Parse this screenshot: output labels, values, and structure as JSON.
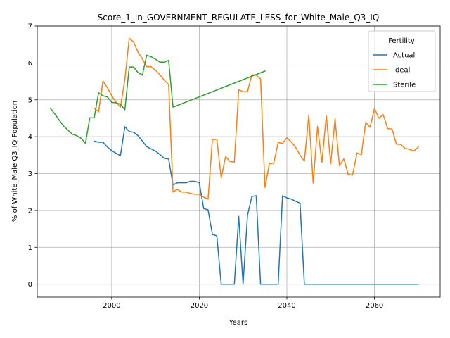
{
  "chart_data": {
    "type": "line",
    "title": "Score_1_in_GOVERNMENT_REGULATE_LESS_for_White_Male_Q3_IQ",
    "xlabel": "Years",
    "ylabel": "% of White_Male Q3_IQ Population",
    "xlim": [
      1983,
      2075
    ],
    "ylim": [
      -0.35,
      7
    ],
    "xticks": [
      "2000",
      "2020",
      "2040",
      "2060"
    ],
    "yticks": [
      "0",
      "1",
      "2",
      "3",
      "4",
      "5",
      "6",
      "7"
    ],
    "grid": true,
    "legend": {
      "title": "Fertility",
      "placement": "top-right"
    },
    "series": [
      {
        "name": "Actual",
        "color": "#1f77b4",
        "x": [
          1996,
          1997,
          1998,
          1999,
          2000,
          2001,
          2002,
          2003,
          2004,
          2005,
          2006,
          2007,
          2008,
          2009,
          2010,
          2011,
          2012,
          2013,
          2014,
          2015,
          2016,
          2017,
          2018,
          2019,
          2020,
          2021,
          2022,
          2023,
          2024,
          2025,
          2026,
          2027,
          2028,
          2029,
          2030,
          2031,
          2032,
          2033,
          2034,
          2035,
          2036,
          2037,
          2038,
          2039,
          2040,
          2041,
          2042,
          2043,
          2044,
          2045,
          2050,
          2055,
          2060,
          2065,
          2070
        ],
        "values": [
          3.88,
          3.85,
          3.85,
          3.72,
          3.62,
          3.55,
          3.49,
          4.27,
          4.14,
          4.12,
          4.03,
          3.88,
          3.73,
          3.67,
          3.61,
          3.52,
          3.41,
          3.4,
          2.69,
          2.75,
          2.75,
          2.75,
          2.79,
          2.79,
          2.75,
          2.05,
          2.02,
          1.35,
          1.31,
          0.0,
          0.0,
          0.0,
          0.0,
          1.84,
          0.0,
          1.87,
          2.38,
          2.4,
          0.0,
          0.0,
          0.0,
          0.0,
          0.0,
          2.4,
          2.34,
          2.31,
          2.25,
          2.2,
          0.0,
          0.0,
          0.0,
          0.0,
          0.0,
          0.0,
          0.0
        ]
      },
      {
        "name": "Ideal",
        "color": "#ff7f0e",
        "x": [
          1996,
          1997,
          1998,
          1999,
          2000,
          2001,
          2002,
          2003,
          2004,
          2005,
          2006,
          2007,
          2008,
          2009,
          2010,
          2011,
          2012,
          2013,
          2014,
          2015,
          2016,
          2017,
          2018,
          2019,
          2020,
          2021,
          2022,
          2023,
          2024,
          2025,
          2026,
          2027,
          2028,
          2029,
          2030,
          2031,
          2032,
          2033,
          2034,
          2035,
          2036,
          2037,
          2038,
          2039,
          2040,
          2041,
          2042,
          2043,
          2044,
          2045,
          2046,
          2047,
          2048,
          2049,
          2050,
          2051,
          2052,
          2053,
          2054,
          2055,
          2056,
          2057,
          2058,
          2059,
          2060,
          2061,
          2062,
          2063,
          2064,
          2065,
          2066,
          2067,
          2068,
          2069,
          2070
        ],
        "values": [
          4.78,
          4.67,
          5.51,
          5.33,
          5.11,
          4.94,
          4.8,
          5.55,
          6.67,
          6.57,
          6.29,
          6.11,
          5.9,
          5.9,
          5.8,
          5.68,
          5.53,
          5.42,
          2.5,
          2.57,
          2.5,
          2.5,
          2.46,
          2.44,
          2.44,
          2.36,
          2.31,
          3.92,
          3.93,
          2.88,
          3.46,
          3.33,
          3.31,
          5.27,
          5.22,
          5.22,
          5.68,
          5.67,
          5.57,
          2.62,
          3.27,
          3.28,
          3.84,
          3.82,
          3.97,
          3.86,
          3.71,
          3.5,
          3.34,
          4.58,
          2.74,
          4.28,
          3.3,
          4.57,
          3.27,
          4.49,
          3.21,
          3.4,
          2.98,
          2.96,
          3.56,
          3.51,
          4.39,
          4.26,
          4.77,
          4.5,
          4.6,
          4.22,
          4.21,
          3.8,
          3.79,
          3.68,
          3.66,
          3.61,
          3.72
        ]
      },
      {
        "name": "Sterile",
        "color": "#2ca02c",
        "x": [
          1986,
          1987,
          1988,
          1989,
          1990,
          1991,
          1992,
          1993,
          1994,
          1995,
          1996,
          1997,
          1998,
          1999,
          2000,
          2001,
          2002,
          2003,
          2004,
          2005,
          2006,
          2007,
          2008,
          2009,
          2010,
          2011,
          2012,
          2013,
          2014,
          2035
        ],
        "values": [
          4.77,
          4.62,
          4.45,
          4.29,
          4.18,
          4.07,
          4.03,
          3.96,
          3.82,
          4.51,
          4.51,
          5.19,
          5.11,
          5.08,
          4.93,
          4.92,
          4.88,
          4.73,
          5.89,
          5.89,
          5.74,
          5.67,
          6.21,
          6.17,
          6.1,
          6.02,
          6.02,
          6.07,
          4.8,
          5.78
        ]
      }
    ]
  }
}
